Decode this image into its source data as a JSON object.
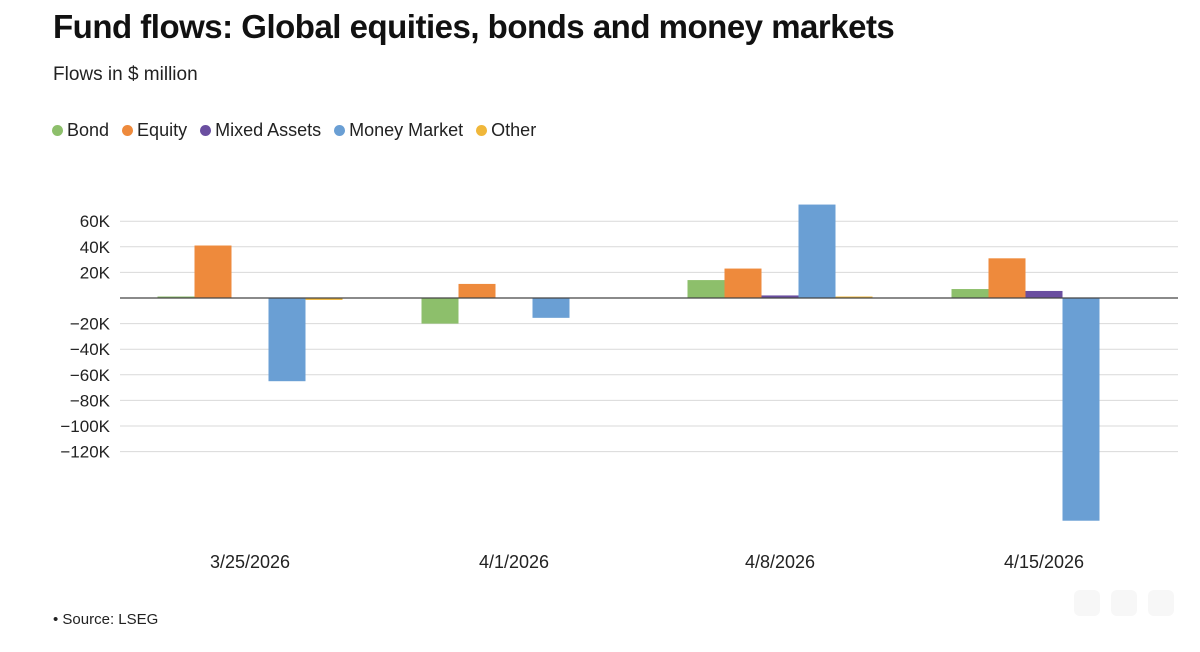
{
  "chart_data": {
    "type": "bar",
    "title": "Fund flows: Global equities, bonds and money markets",
    "subtitle": "Flows in $ million",
    "categories": [
      "3/25/2026",
      "4/1/2026",
      "4/8/2026",
      "4/15/2026"
    ],
    "series": [
      {
        "name": "Bond",
        "color": "#8dbf6b",
        "values": [
          1000,
          -20000,
          14000,
          7000
        ]
      },
      {
        "name": "Equity",
        "color": "#ee8a3c",
        "values": [
          41000,
          11000,
          23000,
          31000
        ]
      },
      {
        "name": "Mixed Assets",
        "color": "#6a4ea0",
        "values": [
          0,
          0,
          2000,
          5500
        ]
      },
      {
        "name": "Money Market",
        "color": "#6a9fd4",
        "values": [
          -65000,
          -15500,
          73000,
          -174000
        ]
      },
      {
        "name": "Other",
        "color": "#f0b73a",
        "values": [
          -1500,
          0,
          1000,
          0
        ]
      }
    ],
    "yticks": [
      60000,
      40000,
      20000,
      0,
      -20000,
      -40000,
      -60000,
      -80000,
      -100000,
      -120000
    ],
    "ytick_labels": [
      "60K",
      "40K",
      "20K",
      "",
      "−20K",
      "−40K",
      "−60K",
      "−80K",
      "−100K",
      "−120K"
    ],
    "ylim": [
      -180000,
      80000
    ],
    "xlabel": "",
    "ylabel": "",
    "grid": true,
    "legend_position": "top-left"
  },
  "footnote": "• Source: LSEG"
}
